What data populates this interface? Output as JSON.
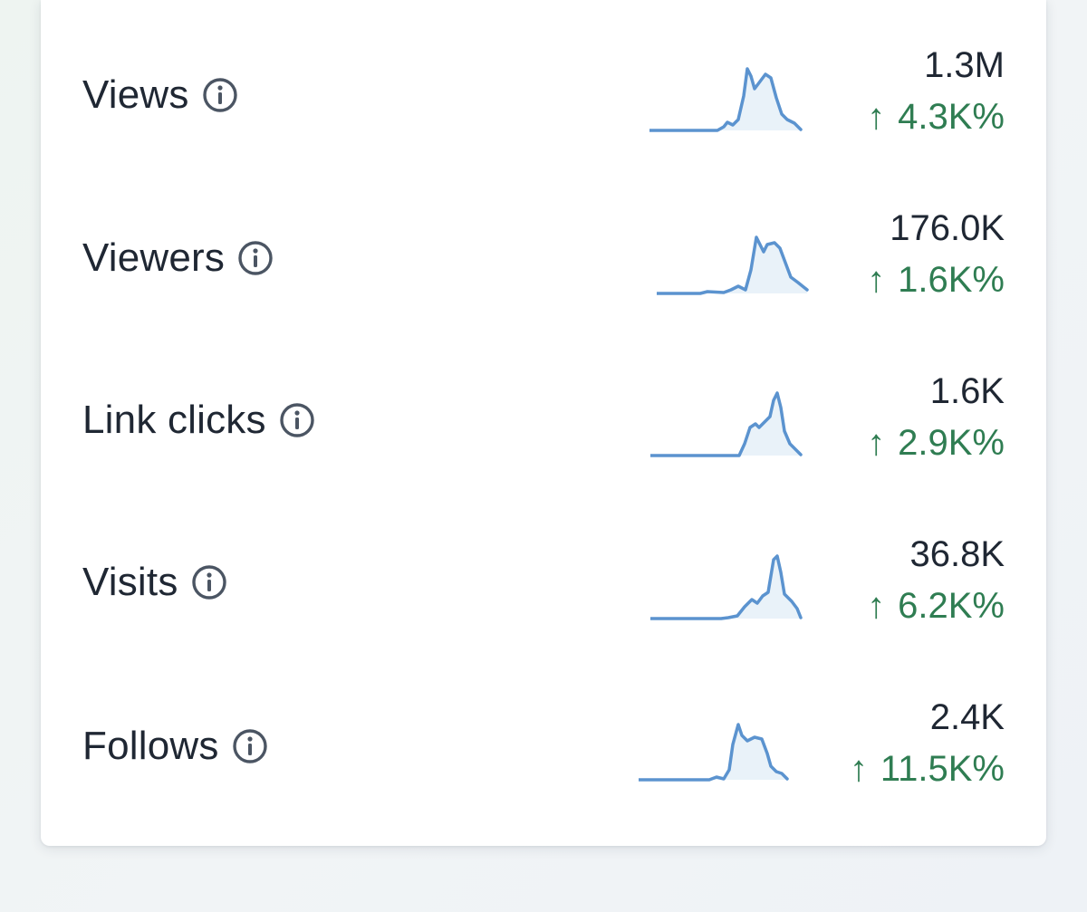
{
  "colors": {
    "text": "#1f2733",
    "positive": "#2f7d52",
    "sparkline_stroke": "#5b93cf",
    "sparkline_fill": "#e9f2f9",
    "info_icon": "#4b5563"
  },
  "icons": {
    "info": "info-circle-icon",
    "trend_up": "arrow-up-icon"
  },
  "metrics": [
    {
      "label": "Views",
      "value": "1.3M",
      "arrow": "↑",
      "change": "4.3K%"
    },
    {
      "label": "Viewers",
      "value": "176.0K",
      "arrow": "↑",
      "change": "1.6K%"
    },
    {
      "label": "Link clicks",
      "value": "1.6K",
      "arrow": "↑",
      "change": "2.9K%"
    },
    {
      "label": "Visits",
      "value": "36.8K",
      "arrow": "↑",
      "change": "6.2K%"
    },
    {
      "label": "Follows",
      "value": "2.4K",
      "arrow": "↑",
      "change": "11.5K%"
    }
  ]
}
